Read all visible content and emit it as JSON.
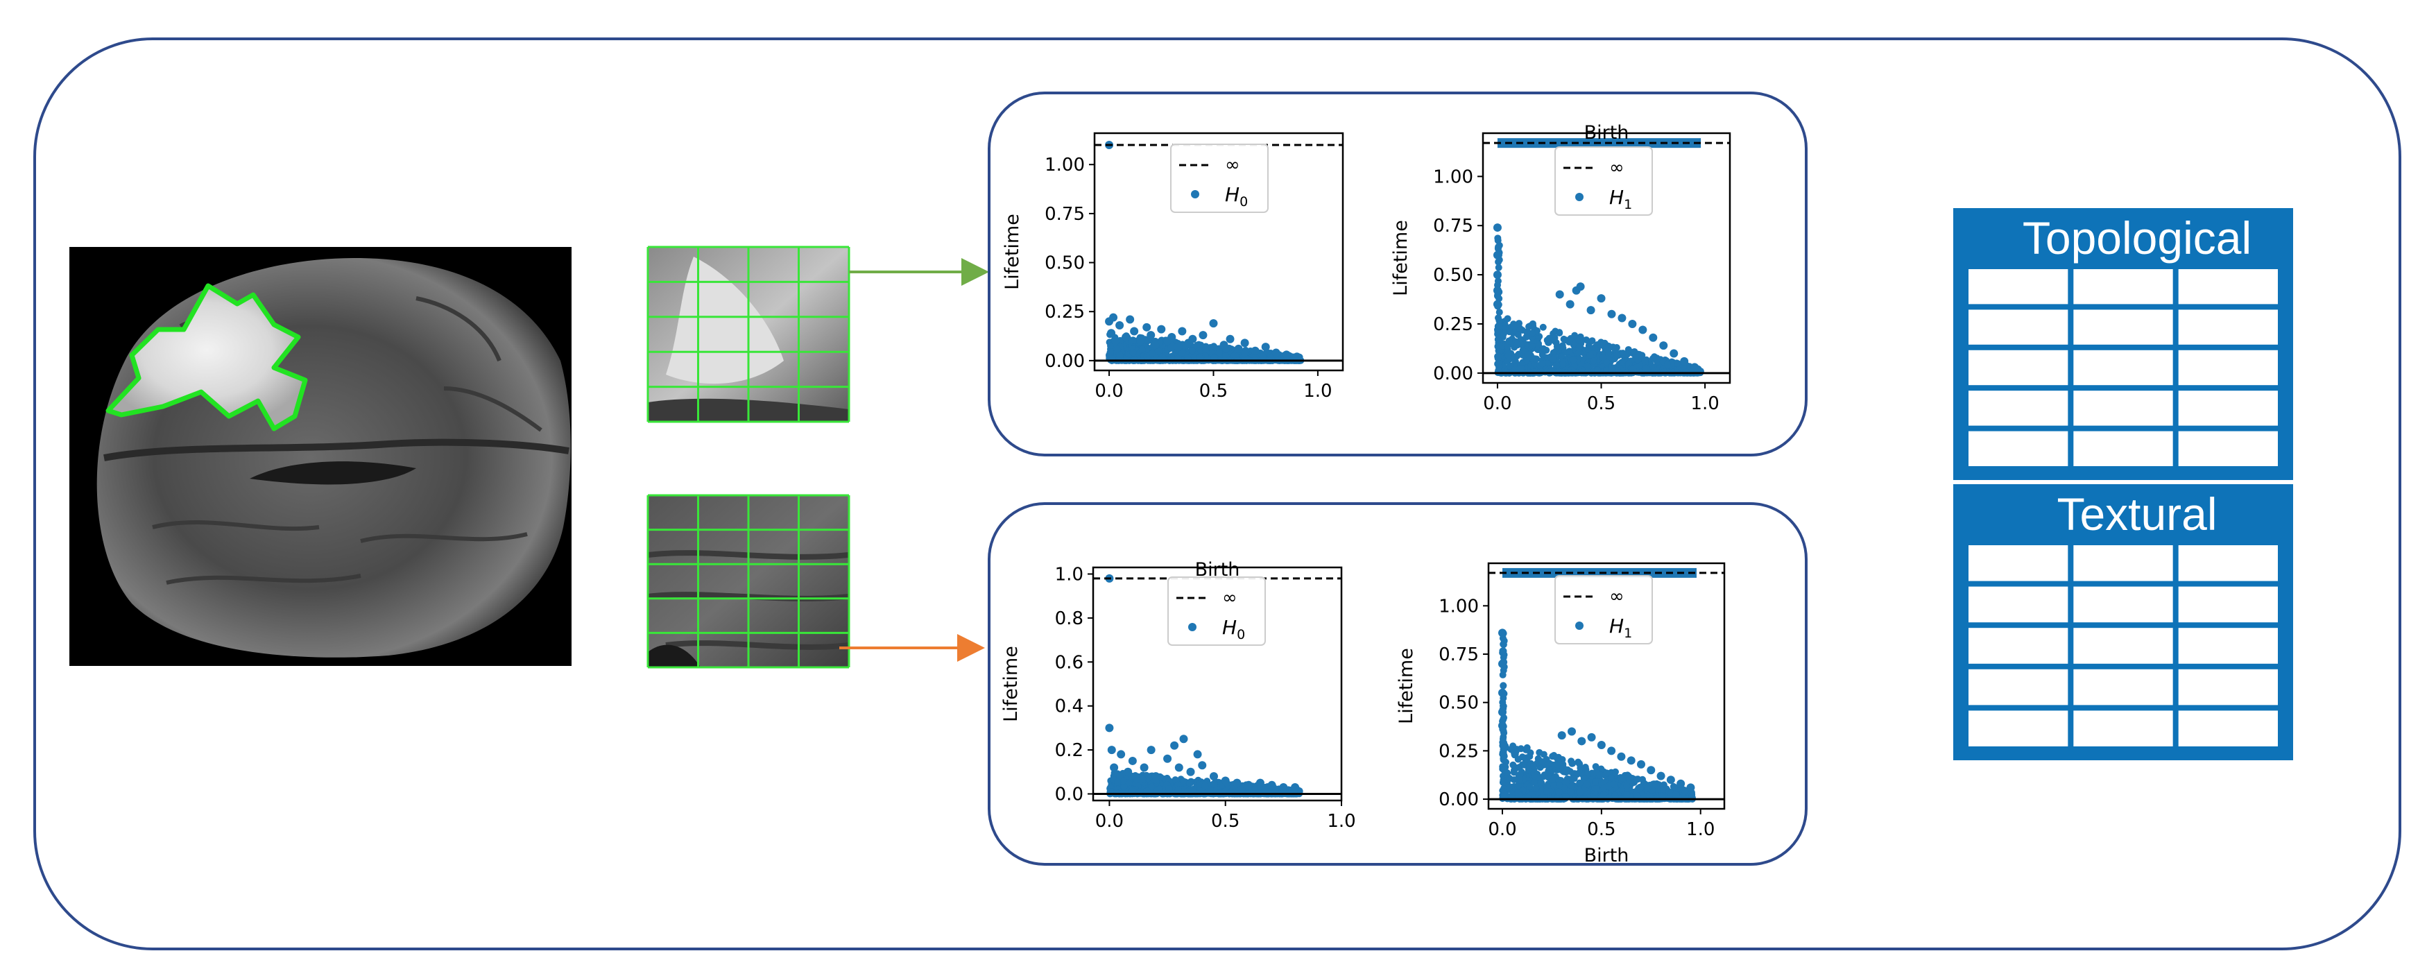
{
  "colors": {
    "frame": "#2e4a8c",
    "tumor_outline": "#22e322",
    "grid": "#39e639",
    "arrow_top": "#70ad47",
    "arrow_bottom": "#ed7d31",
    "points": "#1f77b4",
    "table_bg": "#0e73b8",
    "table_cell": "#ffffff"
  },
  "tables": [
    {
      "title": "Topological",
      "rows": 5,
      "cols": 3
    },
    {
      "title": "Textural",
      "rows": 5,
      "cols": 3
    }
  ],
  "chart_data": [
    {
      "type": "scatter",
      "panel": "top",
      "series_label": "H",
      "series_sub": "0",
      "xlabel": "",
      "ylabel": "Lifetime",
      "xlim": [
        -0.07,
        1.12
      ],
      "ylim": [
        -0.05,
        1.16
      ],
      "xticks": [
        "0.0",
        "0.5",
        "1.0"
      ],
      "xtick_values": [
        0,
        0.5,
        1.0
      ],
      "yticks": [
        "0.00",
        "0.25",
        "0.50",
        "0.75",
        "1.00"
      ],
      "ytick_values": [
        0,
        0.25,
        0.5,
        0.75,
        1.0
      ],
      "infinity_y": 1.1,
      "infinity_label": "∞",
      "points": [
        [
          0.0,
          1.1
        ],
        [
          0.0,
          0.2
        ],
        [
          0.01,
          0.14
        ],
        [
          0.02,
          0.22
        ],
        [
          0.03,
          0.1
        ],
        [
          0.05,
          0.18
        ],
        [
          0.08,
          0.12
        ],
        [
          0.1,
          0.21
        ],
        [
          0.12,
          0.15
        ],
        [
          0.15,
          0.1
        ],
        [
          0.18,
          0.17
        ],
        [
          0.2,
          0.13
        ],
        [
          0.22,
          0.08
        ],
        [
          0.25,
          0.16
        ],
        [
          0.28,
          0.1
        ],
        [
          0.3,
          0.12
        ],
        [
          0.33,
          0.07
        ],
        [
          0.35,
          0.15
        ],
        [
          0.38,
          0.09
        ],
        [
          0.4,
          0.11
        ],
        [
          0.45,
          0.13
        ],
        [
          0.5,
          0.19
        ],
        [
          0.55,
          0.08
        ],
        [
          0.58,
          0.11
        ],
        [
          0.62,
          0.06
        ],
        [
          0.65,
          0.09
        ],
        [
          0.7,
          0.05
        ],
        [
          0.75,
          0.07
        ],
        [
          0.8,
          0.04
        ],
        [
          0.85,
          0.03
        ],
        [
          0.9,
          0.02
        ]
      ],
      "cloud": {
        "x_max": 0.92,
        "y_max_at_0": 0.14,
        "y_max_at_end": 0.02
      }
    },
    {
      "type": "scatter",
      "panel": "top",
      "series_label": "H",
      "series_sub": "1",
      "xlabel": "Birth",
      "ylabel": "Lifetime",
      "xlim": [
        -0.07,
        1.12
      ],
      "ylim": [
        -0.05,
        1.22
      ],
      "xticks": [
        "0.0",
        "0.5",
        "1.0"
      ],
      "xtick_values": [
        0,
        0.5,
        1.0
      ],
      "yticks": [
        "0.00",
        "0.25",
        "0.50",
        "0.75",
        "1.00"
      ],
      "ytick_values": [
        0,
        0.25,
        0.5,
        0.75,
        1.0
      ],
      "infinity_y": 1.17,
      "infinity_label": "∞",
      "points": [
        [
          0.0,
          0.74
        ],
        [
          0.0,
          0.6
        ],
        [
          0.0,
          0.5
        ],
        [
          0.0,
          0.42
        ],
        [
          0.0,
          0.35
        ],
        [
          0.3,
          0.4
        ],
        [
          0.35,
          0.35
        ],
        [
          0.38,
          0.42
        ],
        [
          0.4,
          0.44
        ],
        [
          0.45,
          0.32
        ],
        [
          0.5,
          0.38
        ],
        [
          0.55,
          0.3
        ],
        [
          0.6,
          0.28
        ],
        [
          0.65,
          0.25
        ],
        [
          0.7,
          0.22
        ],
        [
          0.75,
          0.18
        ],
        [
          0.8,
          0.14
        ],
        [
          0.85,
          0.1
        ],
        [
          0.9,
          0.06
        ],
        [
          0.95,
          0.03
        ]
      ],
      "spike": {
        "x": 0.0,
        "y_max": 0.74
      },
      "cloud": {
        "x_max": 0.98,
        "y_max_at_0": 0.3,
        "y_max_at_end": 0.02
      },
      "infinity_band": {
        "x_min": 0.0,
        "x_max": 0.98
      }
    },
    {
      "type": "scatter",
      "panel": "bottom",
      "series_label": "H",
      "series_sub": "0",
      "xlabel": "Birth",
      "ylabel": "Lifetime",
      "xlim": [
        -0.07,
        1.0
      ],
      "ylim": [
        -0.03,
        1.03
      ],
      "xticks": [
        "0.0",
        "0.5",
        "1.0"
      ],
      "xtick_values": [
        0,
        0.5,
        1.0
      ],
      "yticks": [
        "0.0",
        "0.2",
        "0.4",
        "0.6",
        "0.8",
        "1.0"
      ],
      "ytick_values": [
        0,
        0.2,
        0.4,
        0.6,
        0.8,
        1.0
      ],
      "infinity_y": 0.98,
      "infinity_label": "∞",
      "points": [
        [
          0.0,
          0.98
        ],
        [
          0.0,
          0.3
        ],
        [
          0.01,
          0.2
        ],
        [
          0.02,
          0.12
        ],
        [
          0.05,
          0.18
        ],
        [
          0.08,
          0.1
        ],
        [
          0.1,
          0.15
        ],
        [
          0.15,
          0.12
        ],
        [
          0.18,
          0.2
        ],
        [
          0.2,
          0.08
        ],
        [
          0.25,
          0.16
        ],
        [
          0.28,
          0.22
        ],
        [
          0.3,
          0.12
        ],
        [
          0.32,
          0.25
        ],
        [
          0.35,
          0.1
        ],
        [
          0.38,
          0.18
        ],
        [
          0.4,
          0.13
        ],
        [
          0.45,
          0.08
        ],
        [
          0.5,
          0.06
        ],
        [
          0.55,
          0.05
        ],
        [
          0.6,
          0.04
        ],
        [
          0.65,
          0.05
        ],
        [
          0.7,
          0.04
        ],
        [
          0.75,
          0.03
        ],
        [
          0.8,
          0.03
        ]
      ],
      "cloud": {
        "x_max": 0.82,
        "y_max_at_0": 0.1,
        "y_max_at_end": 0.02
      }
    },
    {
      "type": "scatter",
      "panel": "bottom",
      "series_label": "H",
      "series_sub": "1",
      "xlabel": "Birth",
      "ylabel": "Lifetime",
      "xlim": [
        -0.07,
        1.12
      ],
      "ylim": [
        -0.05,
        1.22
      ],
      "xticks": [
        "0.0",
        "0.5",
        "1.0"
      ],
      "xtick_values": [
        0,
        0.5,
        1.0
      ],
      "yticks": [
        "0.00",
        "0.25",
        "0.50",
        "0.75",
        "1.00"
      ],
      "ytick_values": [
        0,
        0.25,
        0.5,
        0.75,
        1.0
      ],
      "infinity_y": 1.17,
      "infinity_label": "∞",
      "points": [
        [
          0.0,
          0.86
        ],
        [
          0.0,
          0.7
        ],
        [
          0.0,
          0.55
        ],
        [
          0.0,
          0.45
        ],
        [
          0.0,
          0.38
        ],
        [
          0.3,
          0.33
        ],
        [
          0.35,
          0.35
        ],
        [
          0.4,
          0.3
        ],
        [
          0.45,
          0.32
        ],
        [
          0.5,
          0.28
        ],
        [
          0.55,
          0.25
        ],
        [
          0.6,
          0.22
        ],
        [
          0.65,
          0.2
        ],
        [
          0.7,
          0.18
        ],
        [
          0.75,
          0.15
        ],
        [
          0.8,
          0.12
        ],
        [
          0.85,
          0.1
        ],
        [
          0.9,
          0.08
        ],
        [
          0.95,
          0.06
        ]
      ],
      "spike": {
        "x": 0.0,
        "y_max": 0.86
      },
      "cloud": {
        "x_max": 0.96,
        "y_max_at_0": 0.3,
        "y_max_at_end": 0.04
      },
      "infinity_band": {
        "x_min": 0.0,
        "x_max": 0.98
      }
    }
  ]
}
